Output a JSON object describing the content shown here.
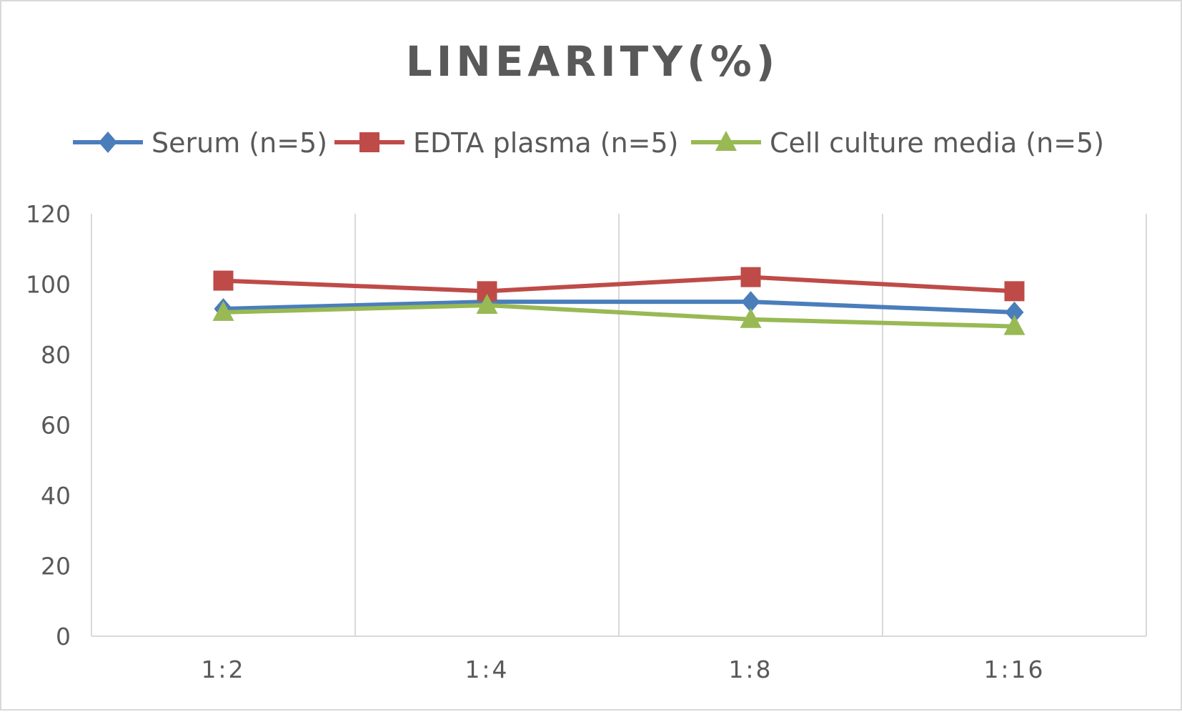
{
  "chart_data": {
    "type": "line",
    "title": "LINEARITY(%)",
    "categories": [
      "1:2",
      "1:4",
      "1:8",
      "1:16"
    ],
    "ylim": [
      0,
      120
    ],
    "yticks": [
      0,
      20,
      40,
      60,
      80,
      100,
      120
    ],
    "grid": "vertical",
    "legend_position": "top",
    "series": [
      {
        "name": "Serum (n=5)",
        "color": "#4a7ebb",
        "marker": "diamond",
        "values": [
          93,
          95,
          95,
          92
        ]
      },
      {
        "name": "EDTA plasma (n=5)",
        "color": "#be4b48",
        "marker": "square",
        "values": [
          101,
          98,
          102,
          98
        ]
      },
      {
        "name": "Cell culture media (n=5)",
        "color": "#98b954",
        "marker": "triangle",
        "values": [
          92,
          94,
          90,
          88
        ]
      }
    ]
  }
}
